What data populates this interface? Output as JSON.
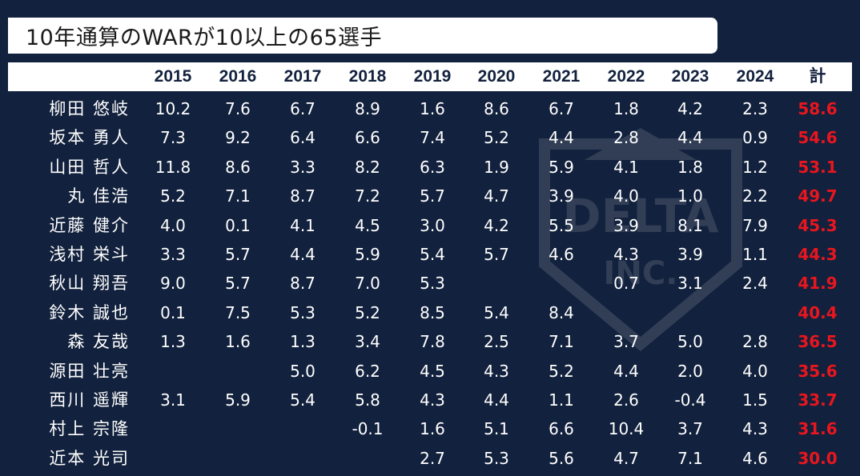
{
  "title": "10年通算のWARが10以上の65選手",
  "colors": {
    "background": "#12213d",
    "total": "#e8161e",
    "header_bg": "#ffffff"
  },
  "watermark": {
    "line1": "DELTA",
    "line2": "INC."
  },
  "table": {
    "columns": [
      "2015",
      "2016",
      "2017",
      "2018",
      "2019",
      "2020",
      "2021",
      "2022",
      "2023",
      "2024",
      "計"
    ],
    "rows": [
      {
        "name": "柳田 悠岐",
        "values": [
          "10.2",
          "7.6",
          "6.7",
          "8.9",
          "1.6",
          "8.6",
          "6.7",
          "1.8",
          "4.2",
          "2.3"
        ],
        "total": "58.6"
      },
      {
        "name": "坂本 勇人",
        "values": [
          "7.3",
          "9.2",
          "6.4",
          "6.6",
          "7.4",
          "5.2",
          "4.4",
          "2.8",
          "4.4",
          "0.9"
        ],
        "total": "54.6"
      },
      {
        "name": "山田 哲人",
        "values": [
          "11.8",
          "8.6",
          "3.3",
          "8.2",
          "6.3",
          "1.9",
          "5.9",
          "4.1",
          "1.8",
          "1.2"
        ],
        "total": "53.1"
      },
      {
        "name": "丸 佳浩",
        "values": [
          "5.2",
          "7.1",
          "8.7",
          "7.2",
          "5.7",
          "4.7",
          "3.9",
          "4.0",
          "1.0",
          "2.2"
        ],
        "total": "49.7"
      },
      {
        "name": "近藤 健介",
        "values": [
          "4.0",
          "0.1",
          "4.1",
          "4.5",
          "3.0",
          "4.2",
          "5.5",
          "3.9",
          "8.1",
          "7.9"
        ],
        "total": "45.3"
      },
      {
        "name": "浅村 栄斗",
        "values": [
          "3.3",
          "5.7",
          "4.4",
          "5.9",
          "5.4",
          "5.7",
          "4.6",
          "4.3",
          "3.9",
          "1.1"
        ],
        "total": "44.3"
      },
      {
        "name": "秋山 翔吾",
        "values": [
          "9.0",
          "5.7",
          "8.7",
          "7.0",
          "5.3",
          "",
          "",
          "0.7",
          "3.1",
          "2.4"
        ],
        "total": "41.9"
      },
      {
        "name": "鈴木 誠也",
        "values": [
          "0.1",
          "7.5",
          "5.3",
          "5.2",
          "8.5",
          "5.4",
          "8.4",
          "",
          "",
          ""
        ],
        "total": "40.4"
      },
      {
        "name": "森 友哉",
        "values": [
          "1.3",
          "1.6",
          "1.3",
          "3.4",
          "7.8",
          "2.5",
          "7.1",
          "3.7",
          "5.0",
          "2.8"
        ],
        "total": "36.5"
      },
      {
        "name": "源田 壮亮",
        "values": [
          "",
          "",
          "5.0",
          "6.2",
          "4.5",
          "4.3",
          "5.2",
          "4.4",
          "2.0",
          "4.0"
        ],
        "total": "35.6"
      },
      {
        "name": "西川 遥輝",
        "values": [
          "3.1",
          "5.9",
          "5.4",
          "5.8",
          "4.3",
          "4.4",
          "1.1",
          "2.6",
          "-0.4",
          "1.5"
        ],
        "total": "33.7"
      },
      {
        "name": "村上 宗隆",
        "values": [
          "",
          "",
          "",
          "-0.1",
          "1.6",
          "5.1",
          "6.6",
          "10.4",
          "3.7",
          "4.3"
        ],
        "total": "31.6"
      },
      {
        "name": "近本 光司",
        "values": [
          "",
          "",
          "",
          "",
          "2.7",
          "5.3",
          "5.6",
          "4.7",
          "7.1",
          "4.6"
        ],
        "total": "30.0"
      }
    ]
  }
}
